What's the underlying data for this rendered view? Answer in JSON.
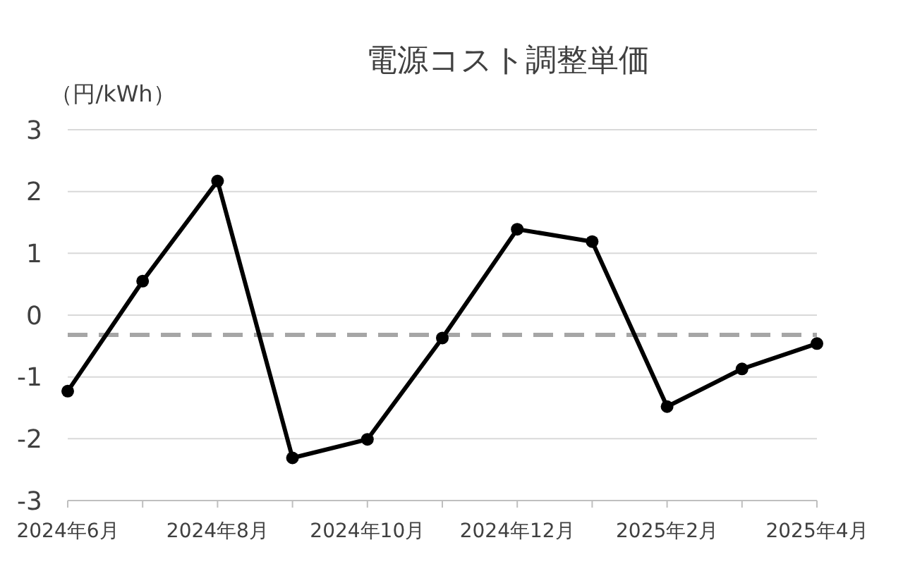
{
  "chart_data": {
    "type": "line",
    "title": "電源コスト調整単価",
    "ylabel": "（円/kWh）",
    "categories": [
      "2024年6月",
      null,
      "2024年8月",
      null,
      "2024年10月",
      null,
      "2024年12月",
      null,
      "2025年2月",
      null,
      "2025年4月"
    ],
    "series": [
      {
        "color": "#000000",
        "values": [
          -1.23,
          0.55,
          2.17,
          -2.31,
          -2.01,
          -0.37,
          1.39,
          1.19,
          -1.48,
          -0.87,
          -0.46
        ]
      }
    ],
    "ylim": [
      -3,
      3
    ],
    "yticks": [
      -3,
      -2,
      -1,
      0,
      1,
      2,
      3
    ],
    "grid": "y",
    "marker": "circle",
    "line_style": "solid",
    "ref_lines": [
      {
        "axis": "y",
        "value": -0.32,
        "color": "#a6a6a6",
        "line_style": "dashed"
      }
    ]
  }
}
